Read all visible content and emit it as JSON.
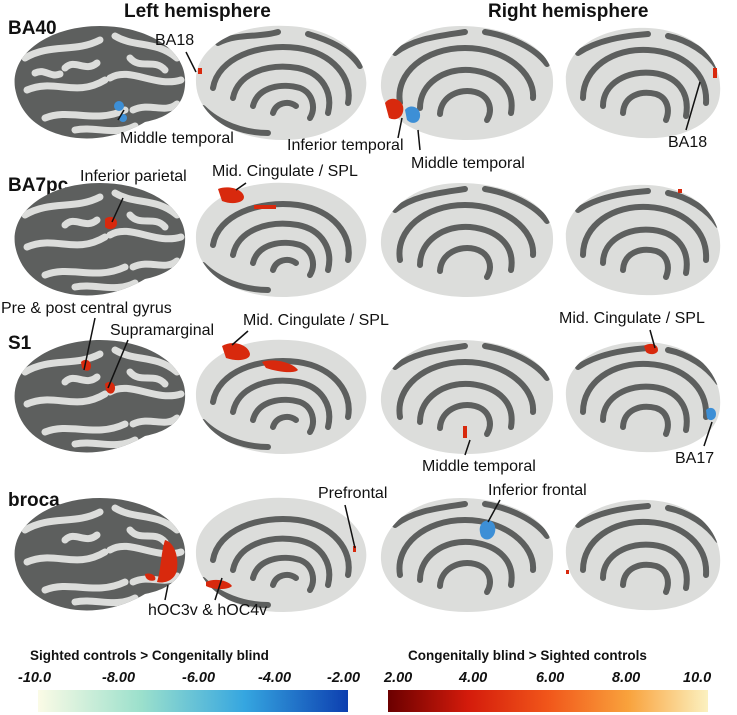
{
  "figure": {
    "hemispheres": {
      "left": "Left hemisphere",
      "right": "Right hemisphere"
    },
    "rows": [
      {
        "label": "BA40"
      },
      {
        "label": "BA7pc"
      },
      {
        "label": "S1"
      },
      {
        "label": "broca"
      }
    ],
    "annotations": {
      "ba18_left": "BA18",
      "middle_temporal_1": "Middle temporal",
      "inferior_temporal": "Inferior temporal",
      "middle_temporal_2": "Middle temporal",
      "ba18_right": "BA18",
      "inferior_parietal": "Inferior parietal",
      "mid_cingulate_1": "Mid. Cingulate / SPL",
      "pre_post_central": "Pre & post central gyrus",
      "supramarginal": "Supramarginal",
      "mid_cingulate_2": "Mid. Cingulate / SPL",
      "mid_cingulate_3": "Mid. Cingulate / SPL",
      "middle_temporal_3": "Middle temporal",
      "ba17": "BA17",
      "prefrontal": "Prefrontal",
      "inferior_frontal": "Inferior frontal",
      "hoc": "hOC3v & hOC4v"
    },
    "colorbars": {
      "blue": {
        "title": "Sighted controls > Congenitally blind",
        "ticks": [
          "-10.0",
          "-8.00",
          "-6.00",
          "-4.00",
          "-2.00"
        ],
        "colors": [
          "#fbfbe6",
          "#9be0cc",
          "#35a6e0",
          "#0d3fb0"
        ]
      },
      "red": {
        "title": "Congenitally blind > Sighted controls",
        "ticks": [
          "2.00",
          "4.00",
          "6.00",
          "8.00",
          "10.0"
        ],
        "colors": [
          "#6b0000",
          "#d41b0b",
          "#f1561a",
          "#f9a23c",
          "#fbf1c0"
        ]
      }
    },
    "colors": {
      "sulcus": "#5d5f5e",
      "gyrus": "#dcdddb",
      "activation_red": "#d8290d",
      "activation_blue": "#3d8fd6"
    }
  }
}
